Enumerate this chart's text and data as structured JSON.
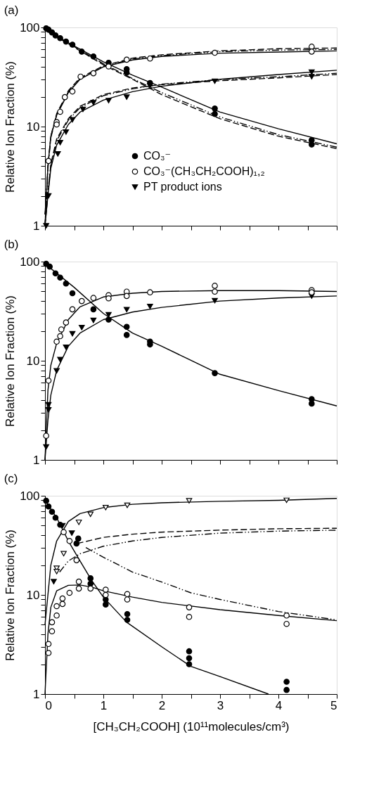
{
  "chart_data": [
    {
      "type": "scatter",
      "title": "(a)",
      "ylabel": "Relative Ion Fraction (%)",
      "xlim": [
        0,
        5
      ],
      "xticks": [
        {
          "value": 0,
          "label": null
        },
        {
          "value": 0.5,
          "label": null
        },
        {
          "value": 1,
          "label": null
        },
        {
          "value": 1.5,
          "label": null
        },
        {
          "value": 2,
          "label": null
        },
        {
          "value": 2.5,
          "label": null
        },
        {
          "value": 3,
          "label": null
        },
        {
          "value": 3.5,
          "label": null
        },
        {
          "value": 4,
          "label": null
        },
        {
          "value": 4.5,
          "label": null
        },
        {
          "value": 5,
          "label": null
        }
      ],
      "ylim": [
        1,
        100
      ],
      "yticks": [
        1,
        {
          "value": 2,
          "label": null
        },
        {
          "value": 3,
          "label": null
        },
        {
          "value": 4,
          "label": null
        },
        {
          "value": 5,
          "label": null
        },
        {
          "value": 6,
          "label": null
        },
        {
          "value": 7,
          "label": null
        },
        {
          "value": 8,
          "label": null
        },
        {
          "value": 9,
          "label": null
        },
        10,
        {
          "value": 20,
          "label": null
        },
        {
          "value": 30,
          "label": null
        },
        {
          "value": 40,
          "label": null
        },
        {
          "value": 50,
          "label": null
        },
        {
          "value": 60,
          "label": null
        },
        {
          "value": 70,
          "label": null
        },
        {
          "value": 80,
          "label": null
        },
        {
          "value": 90,
          "label": null
        },
        100
      ],
      "log": "y",
      "grid": false,
      "legend": "bottom",
      "tick_labels": "y",
      "series": [
        {
          "name": "CO₃⁻",
          "marker": "circle",
          "color": "#000000",
          "x": [
            0.02,
            0.06,
            0.12,
            0.18,
            0.26,
            0.36,
            0.47,
            0.63,
            0.83,
            1.09,
            1.4,
            1.4,
            1.8,
            2.91,
            2.91,
            4.57,
            4.57
          ],
          "values": [
            98,
            95,
            89,
            83,
            78,
            72,
            67,
            57,
            51,
            44,
            38,
            35,
            27.5,
            15.2,
            13.4,
            7.3,
            6.6
          ]
        },
        {
          "name": "CO₃⁻(CH₃CH₂COOH)₁,₂",
          "marker": "open circle",
          "color": "#000000",
          "x": [
            0.06,
            0.2,
            0.2,
            0.26,
            0.34,
            0.47,
            0.61,
            0.83,
            1.09,
            1.4,
            1.8,
            2.91,
            4.57,
            4.57
          ],
          "values": [
            4.5,
            11.1,
            10.5,
            14.1,
            19.8,
            22.6,
            31.9,
            34.5,
            40.4,
            47.3,
            48.6,
            55.5,
            63.9,
            57
          ]
        },
        {
          "name": "PT product ions",
          "marker": "triangle",
          "color": "#000000",
          "x": [
            0.02,
            0.06,
            0.22,
            0.26,
            0.36,
            0.47,
            0.65,
            0.83,
            1.09,
            1.4,
            1.8,
            2.91,
            4.57,
            4.57
          ],
          "values": [
            1.0,
            2.0,
            5.3,
            6.9,
            8.8,
            11.7,
            14.9,
            17.4,
            18.3,
            19.8,
            25.8,
            28.7,
            35.4,
            31.9
          ]
        },
        {
          "type": "line",
          "line_style": "solid",
          "color": "#000000",
          "x": [
            0,
            0.5,
            1,
            1.5,
            2,
            3,
            4,
            5
          ],
          "values": [
            95,
            65,
            45,
            33,
            25,
            14,
            9.5,
            6.7
          ]
        },
        {
          "type": "line",
          "line_style": "dashed",
          "color": "#000000",
          "x": [
            0,
            0.5,
            1,
            1.5,
            2,
            3,
            4,
            5
          ],
          "values": [
            95,
            63,
            42,
            30,
            21,
            12,
            8,
            6
          ]
        },
        {
          "type": "line",
          "line_style": "dotted",
          "color": "#000000",
          "x": [
            0,
            0.5,
            1,
            1.5,
            2,
            3,
            4,
            5
          ],
          "values": [
            94,
            64,
            43,
            30.5,
            22,
            12.5,
            8.3,
            6.2
          ]
        },
        {
          "type": "line",
          "line_style": "solid",
          "color": "#000000",
          "x": [
            0,
            0.05,
            0.1,
            0.2,
            0.4,
            0.6,
            1,
            1.5,
            2,
            3,
            4,
            5
          ],
          "values": [
            1,
            4,
            8,
            13,
            22,
            30,
            40,
            47,
            51,
            55,
            56.5,
            58
          ]
        },
        {
          "type": "line",
          "line_style": "dashed",
          "color": "#000000",
          "x": [
            0,
            0.05,
            0.1,
            0.2,
            0.4,
            0.6,
            1,
            1.5,
            2,
            3,
            4,
            5
          ],
          "values": [
            1,
            4,
            8,
            13.5,
            23,
            31,
            41,
            49,
            53,
            58,
            61,
            62
          ]
        },
        {
          "type": "line",
          "line_style": "dotted",
          "color": "#000000",
          "x": [
            0,
            0.05,
            0.1,
            0.2,
            0.4,
            0.6,
            1,
            1.5,
            2,
            3,
            4,
            5
          ],
          "values": [
            1.3,
            3.8,
            7.7,
            13.2,
            22.5,
            30.5,
            40.5,
            48,
            52,
            57,
            59,
            60
          ]
        },
        {
          "type": "line",
          "line_style": "solid",
          "color": "#000000",
          "x": [
            0,
            0.05,
            0.1,
            0.2,
            0.4,
            0.6,
            1,
            1.5,
            2,
            3,
            4,
            5
          ],
          "values": [
            1,
            2,
            3.8,
            6.5,
            10.5,
            14,
            18.5,
            22.5,
            25.5,
            30,
            33.5,
            37
          ]
        },
        {
          "type": "line",
          "line_style": "dashed",
          "color": "#000000",
          "x": [
            0,
            0.1,
            0.2,
            0.4,
            0.6,
            1,
            1.5,
            2,
            3,
            4,
            5
          ],
          "values": [
            1,
            4.2,
            7.5,
            12,
            16,
            21,
            24.5,
            26.5,
            29,
            31,
            33.5
          ]
        },
        {
          "type": "line",
          "line_style": "dotted",
          "color": "#000000",
          "x": [
            0,
            0.1,
            0.2,
            0.4,
            0.6,
            1,
            1.5,
            2,
            3,
            4,
            5
          ],
          "values": [
            1.3,
            4.0,
            7.2,
            11.6,
            15.5,
            20.5,
            24,
            26.8,
            29.8,
            31.8,
            34.5
          ]
        }
      ]
    },
    {
      "type": "scatter",
      "title": "(b)",
      "ylabel": "Relative Ion Fraction (%)",
      "xlim": [
        0,
        5
      ],
      "xticks": [
        {
          "value": 0,
          "label": null
        },
        {
          "value": 0.5,
          "label": null
        },
        {
          "value": 1,
          "label": null
        },
        {
          "value": 1.5,
          "label": null
        },
        {
          "value": 2,
          "label": null
        },
        {
          "value": 2.5,
          "label": null
        },
        {
          "value": 3,
          "label": null
        },
        {
          "value": 3.5,
          "label": null
        },
        {
          "value": 4,
          "label": null
        },
        {
          "value": 4.5,
          "label": null
        },
        {
          "value": 5,
          "label": null
        }
      ],
      "ylim": [
        1,
        100
      ],
      "yticks": [
        1,
        {
          "value": 2,
          "label": null
        },
        {
          "value": 3,
          "label": null
        },
        {
          "value": 4,
          "label": null
        },
        {
          "value": 5,
          "label": null
        },
        {
          "value": 6,
          "label": null
        },
        {
          "value": 7,
          "label": null
        },
        {
          "value": 8,
          "label": null
        },
        {
          "value": 9,
          "label": null
        },
        10,
        {
          "value": 20,
          "label": null
        },
        {
          "value": 30,
          "label": null
        },
        {
          "value": 40,
          "label": null
        },
        {
          "value": 50,
          "label": null
        },
        {
          "value": 60,
          "label": null
        },
        {
          "value": 70,
          "label": null
        },
        {
          "value": 80,
          "label": null
        },
        {
          "value": 90,
          "label": null
        },
        100
      ],
      "log": "y",
      "grid": false,
      "tick_labels": "y",
      "series": [
        {
          "marker": "circle",
          "color": "#000000",
          "x": [
            0.02,
            0.08,
            0.18,
            0.26,
            0.36,
            0.47,
            0.83,
            1.09,
            1.4,
            1.4,
            1.8,
            1.8,
            2.91,
            4.57,
            4.57
          ],
          "values": [
            95,
            89,
            76,
            69,
            60,
            48,
            33,
            26,
            22,
            18.2,
            15.6,
            14.6,
            7.5,
            4.1,
            3.7
          ]
        },
        {
          "marker": "open circle",
          "color": "#000000",
          "x": [
            0.02,
            0.06,
            0.2,
            0.26,
            0.28,
            0.36,
            0.47,
            0.63,
            0.83,
            1.09,
            1.09,
            1.4,
            1.4,
            1.8,
            2.91,
            2.91,
            4.57,
            4.57
          ],
          "values": [
            1.75,
            6.3,
            15.6,
            17.7,
            20.7,
            24.3,
            33,
            40,
            43,
            45.8,
            42.6,
            49.8,
            45,
            49,
            57,
            49.8,
            51.6,
            49
          ]
        },
        {
          "marker": "triangle",
          "color": "#000000",
          "x": [
            0.02,
            0.06,
            0.06,
            0.2,
            0.26,
            0.36,
            0.47,
            0.63,
            0.83,
            1.09,
            1.4,
            1.8,
            2.91,
            4.57
          ],
          "values": [
            1.35,
            3.6,
            3.2,
            7.9,
            10.3,
            13.7,
            18.7,
            21.6,
            25.5,
            29.1,
            32.8,
            35.3,
            40.4,
            44.9
          ]
        },
        {
          "type": "line",
          "line_style": "solid",
          "color": "#000000",
          "x": [
            0,
            0.5,
            1,
            1.5,
            2,
            3,
            4,
            5
          ],
          "values": [
            95,
            55,
            30,
            19,
            14,
            7.3,
            5,
            3.5
          ]
        },
        {
          "type": "line",
          "line_style": "solid",
          "color": "#000000",
          "x": [
            0,
            0.05,
            0.1,
            0.2,
            0.4,
            0.6,
            1,
            1.5,
            2,
            3,
            4,
            5
          ],
          "values": [
            1,
            5,
            9,
            15,
            26,
            35,
            44,
            48,
            50,
            51,
            51,
            50
          ]
        },
        {
          "type": "line",
          "line_style": "solid",
          "color": "#000000",
          "x": [
            0,
            0.05,
            0.1,
            0.2,
            0.4,
            0.6,
            1,
            1.5,
            2,
            3,
            4,
            5
          ],
          "values": [
            1,
            2.5,
            4.5,
            8,
            14,
            19,
            26,
            31,
            34.5,
            40,
            43,
            45
          ]
        }
      ]
    },
    {
      "type": "scatter",
      "title": "(c)",
      "xlabel": "[CH₃CH₂COOH]  (10¹¹molecules/cm³)",
      "ylabel": "Relative Ion Fraction (%)",
      "xlim": [
        0,
        5
      ],
      "xticks": [
        0,
        {
          "value": 0.5,
          "label": null
        },
        1,
        {
          "value": 1.5,
          "label": null
        },
        2,
        {
          "value": 2.5,
          "label": null
        },
        3,
        {
          "value": 3.5,
          "label": null
        },
        4,
        {
          "value": 4.5,
          "label": null
        },
        5
      ],
      "ylim": [
        1,
        100
      ],
      "yticks": [
        1,
        {
          "value": 2,
          "label": null
        },
        {
          "value": 3,
          "label": null
        },
        {
          "value": 4,
          "label": null
        },
        {
          "value": 5,
          "label": null
        },
        {
          "value": 6,
          "label": null
        },
        {
          "value": 7,
          "label": null
        },
        {
          "value": 8,
          "label": null
        },
        {
          "value": 9,
          "label": null
        },
        10,
        {
          "value": 20,
          "label": null
        },
        {
          "value": 30,
          "label": null
        },
        {
          "value": 40,
          "label": null
        },
        {
          "value": 50,
          "label": null
        },
        {
          "value": 60,
          "label": null
        },
        {
          "value": 70,
          "label": null
        },
        {
          "value": 80,
          "label": null
        },
        {
          "value": 90,
          "label": null
        },
        100
      ],
      "log": "y",
      "grid": false,
      "series": [
        {
          "marker": "circle",
          "color": "#000000",
          "x": [
            0.02,
            0.06,
            0.12,
            0.18,
            0.26,
            0.54,
            0.57,
            0.78,
            0.78,
            1.04,
            1.04,
            1.41,
            1.41,
            2.47,
            2.47,
            2.47,
            4.14,
            4.14
          ],
          "values": [
            89,
            78,
            69,
            60,
            51,
            33,
            37,
            14.7,
            13,
            9,
            8,
            6.4,
            5.6,
            2.7,
            2.3,
            2,
            1.33,
            1.1
          ]
        },
        {
          "marker": "open circle",
          "color": "#000000",
          "x": [
            0.06,
            0.06,
            0.12,
            0.12,
            0.2,
            0.2,
            0.3,
            0.3,
            0.32,
            0.42,
            0.42,
            0.54,
            0.58,
            0.58,
            0.78,
            1.04,
            1.04,
            1.41,
            1.41,
            2.47,
            2.47,
            4.14,
            4.14
          ],
          "values": [
            3.2,
            2.6,
            4.3,
            5.3,
            7.7,
            6.2,
            9.2,
            8.1,
            43,
            10.5,
            35,
            22.4,
            11.6,
            13.6,
            11.6,
            11.3,
            10,
            10.2,
            9,
            7.5,
            6,
            6.2,
            5.1
          ]
        },
        {
          "marker": "triangle",
          "color": "#ffffff",
          "x": [
            0.2,
            0.2,
            0.32,
            0.58,
            0.78,
            1.04,
            1.41,
            2.47,
            4.14
          ],
          "values": [
            18.6,
            17.2,
            26.1,
            54,
            65,
            76,
            80,
            89,
            90
          ]
        },
        {
          "marker": "triangle",
          "color": "#000000",
          "x": [
            0.15,
            0.3,
            0.46
          ],
          "values": [
            13.6,
            50,
            42
          ]
        },
        {
          "type": "line",
          "line_style": "solid",
          "color": "#000000",
          "x": [
            0,
            0.1,
            0.2,
            0.4,
            0.6,
            1,
            1.5,
            2,
            3,
            4,
            5
          ],
          "values": [
            5,
            20,
            35,
            55,
            66,
            76,
            82,
            85,
            88,
            90,
            94
          ]
        },
        {
          "type": "line",
          "line_style": "solid",
          "color": "#000000",
          "x": [
            0,
            0.2,
            0.4,
            0.6,
            0.8,
            1,
            1.4,
            2,
            2.5,
            3,
            3.83
          ],
          "values": [
            90,
            60,
            35,
            22,
            14,
            9.5,
            5.3,
            3,
            1.9,
            1.5,
            1
          ]
        },
        {
          "type": "line",
          "line_style": "solid",
          "color": "#000000",
          "x": [
            0,
            0.05,
            0.1,
            0.2,
            0.4,
            0.6,
            0.8,
            1,
            1.5,
            2,
            3,
            4,
            5
          ],
          "values": [
            1,
            4,
            7.5,
            11,
            12.5,
            12.6,
            12,
            11,
            9.5,
            8.4,
            7.1,
            6.2,
            5.5
          ]
        },
        {
          "type": "line",
          "line_style": "dashed",
          "color": "#000000",
          "x": [
            0.55,
            1,
            1.5,
            2,
            3,
            4,
            5
          ],
          "values": [
            33,
            38,
            41,
            43,
            45,
            46.5,
            47
          ]
        },
        {
          "type": "line",
          "line_style": "dotted",
          "color": "#000000",
          "x": [
            0.25,
            0.4,
            0.6,
            1,
            1.5,
            2,
            3,
            4,
            5
          ],
          "values": [
            17,
            22,
            26,
            31,
            35,
            38,
            42,
            44,
            45
          ]
        },
        {
          "type": "line",
          "line_style": "dotted",
          "color": "#000000",
          "x": [
            0.7,
            1,
            1.5,
            2,
            2.5,
            3,
            4,
            5
          ],
          "values": [
            30,
            24,
            17,
            13.5,
            10.5,
            9,
            6.8,
            5.6
          ]
        }
      ]
    }
  ]
}
